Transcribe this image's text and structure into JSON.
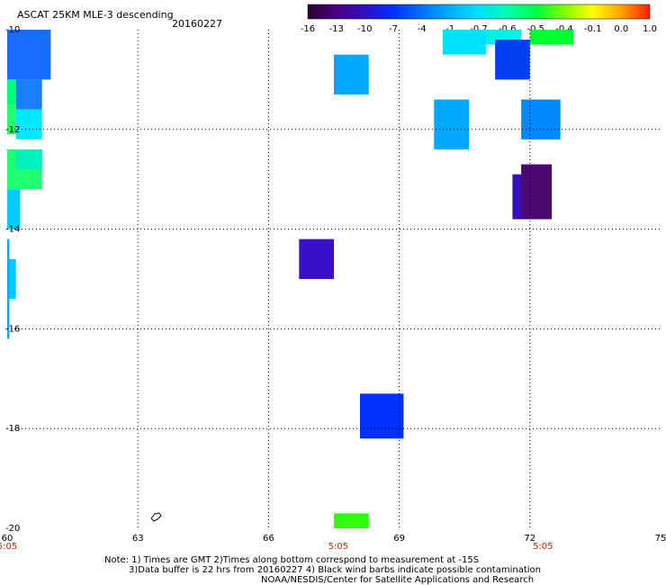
{
  "header": {
    "title": "ASCAT 25KM MLE-3 descending",
    "date": "20160227"
  },
  "colorbar": {
    "labels": [
      "-16",
      "-13",
      "-10",
      "-7",
      "-4",
      "-1",
      "-0.7",
      "-0.6",
      "-0.5",
      "-0.4",
      "-0.1",
      "0.0",
      "1.0"
    ],
    "colors": [
      "#2a0030",
      "#4a0080",
      "#3010c0",
      "#0030ff",
      "#0070ff",
      "#00b0ff",
      "#00e0ff",
      "#00ffb0",
      "#00ff40",
      "#80ff00",
      "#ffff00",
      "#ffa000",
      "#ff2000"
    ]
  },
  "map": {
    "lon_range": [
      60,
      75
    ],
    "lat_range": [
      -20,
      -10
    ],
    "x_ticks": [
      "60",
      "63",
      "66",
      "69",
      "72",
      "75"
    ],
    "y_ticks": [
      "-10",
      "-12",
      "-14",
      "-16",
      "-18",
      "-20"
    ],
    "time_labels": [
      "5:05",
      "5:05",
      "5:05"
    ]
  },
  "chart_data": {
    "type": "heatmap",
    "title": "ASCAT 25KM MLE-3 descending",
    "xlim": [
      60,
      75
    ],
    "ylim": [
      -20,
      -10
    ],
    "cells": [
      {
        "lon0": 60.0,
        "lon1": 61.0,
        "lat0": -11.0,
        "lat1": -10.0,
        "color": "#1a6cff"
      },
      {
        "lon0": 60.0,
        "lon1": 60.2,
        "lat0": -11.5,
        "lat1": -11.0,
        "color": "#00ff80"
      },
      {
        "lon0": 60.2,
        "lon1": 60.8,
        "lat0": -11.6,
        "lat1": -11.0,
        "color": "#1a80ff"
      },
      {
        "lon0": 60.0,
        "lon1": 60.2,
        "lat0": -12.1,
        "lat1": -11.5,
        "color": "#20ff70"
      },
      {
        "lon0": 60.2,
        "lon1": 60.8,
        "lat0": -12.2,
        "lat1": -11.6,
        "color": "#00e8ff"
      },
      {
        "lon0": 60.0,
        "lon1": 60.8,
        "lat0": -13.2,
        "lat1": -12.4,
        "color": "#20ff70"
      },
      {
        "lon0": 60.2,
        "lon1": 60.8,
        "lat0": -12.8,
        "lat1": -12.4,
        "color": "#00f0c0"
      },
      {
        "lon0": 60.0,
        "lon1": 60.3,
        "lat0": -14.0,
        "lat1": -13.2,
        "color": "#00ccff"
      },
      {
        "lon0": 60.0,
        "lon1": 60.2,
        "lat0": -15.4,
        "lat1": -14.6,
        "color": "#00ccff"
      },
      {
        "lon0": 60.0,
        "lon1": 60.05,
        "lat0": -16.2,
        "lat1": -14.2,
        "color": "#00a8ff"
      },
      {
        "lon0": 67.5,
        "lon1": 68.3,
        "lat0": -11.3,
        "lat1": -10.5,
        "color": "#00a8ff"
      },
      {
        "lon0": 70.0,
        "lon1": 71.0,
        "lat0": -10.5,
        "lat1": -10.0,
        "color": "#00e0ff"
      },
      {
        "lon0": 71.0,
        "lon1": 71.8,
        "lat0": -10.3,
        "lat1": -10.0,
        "color": "#00f0e8"
      },
      {
        "lon0": 71.2,
        "lon1": 72.0,
        "lat0": -11.0,
        "lat1": -10.2,
        "color": "#0040f0"
      },
      {
        "lon0": 72.0,
        "lon1": 73.0,
        "lat0": -10.3,
        "lat1": -10.0,
        "color": "#00ff30"
      },
      {
        "lon0": 69.8,
        "lon1": 70.6,
        "lat0": -12.4,
        "lat1": -11.4,
        "color": "#00a8ff"
      },
      {
        "lon0": 71.8,
        "lon1": 72.7,
        "lat0": -12.2,
        "lat1": -11.4,
        "color": "#0088ff"
      },
      {
        "lon0": 71.6,
        "lon1": 72.5,
        "lat0": -13.8,
        "lat1": -12.9,
        "color": "#3810c0"
      },
      {
        "lon0": 71.8,
        "lon1": 72.5,
        "lat0": -13.8,
        "lat1": -12.7,
        "color": "#4a0870"
      },
      {
        "lon0": 66.7,
        "lon1": 67.5,
        "lat0": -15.0,
        "lat1": -14.2,
        "color": "#3810c8"
      },
      {
        "lon0": 68.1,
        "lon1": 69.1,
        "lat0": -18.2,
        "lat1": -17.3,
        "color": "#0030ff"
      },
      {
        "lon0": 67.5,
        "lon1": 68.3,
        "lat0": -20.0,
        "lat1": -19.7,
        "color": "#30ff10"
      }
    ]
  },
  "footer": {
    "note_line1": "Note: 1) Times are GMT 2)Times along bottom correspond to measurement at -15S",
    "note_line2": "3)Data buffer is 22 hrs from 20160227 4) Black wind barbs indicate possible contamination",
    "note_line3": "NOAA/NESDIS/Center for Satellite Applications and Research"
  }
}
